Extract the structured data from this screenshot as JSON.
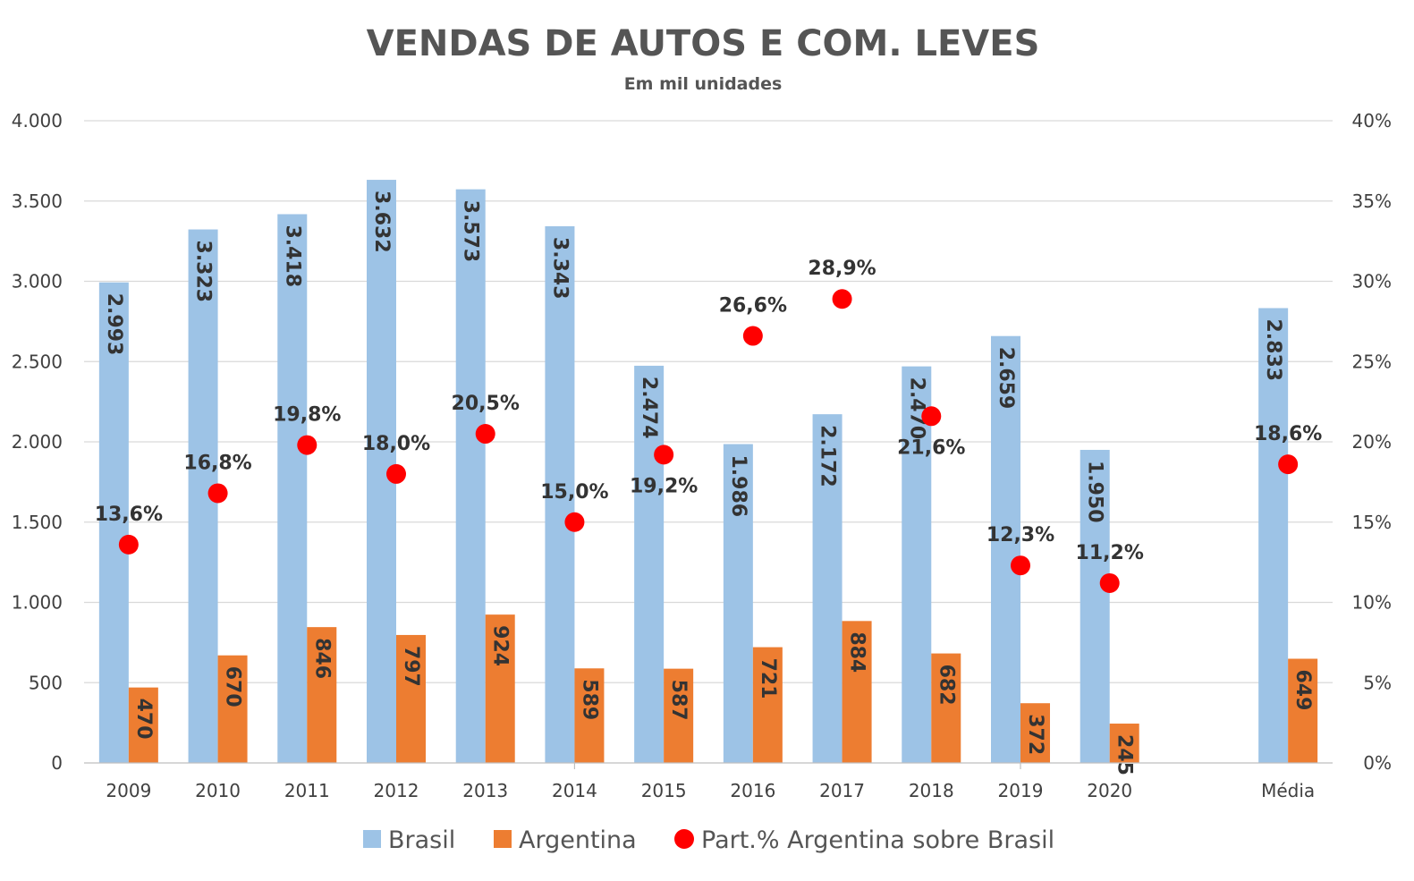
{
  "chart_data": {
    "type": "bar",
    "title": "VENDAS DE AUTOS E COM. LEVES",
    "subtitle": "Em mil unidades",
    "categories": [
      "2009",
      "2010",
      "2011",
      "2012",
      "2013",
      "2014",
      "2015",
      "2016",
      "2017",
      "2018",
      "2019",
      "2020",
      "Média"
    ],
    "series": [
      {
        "name": "Brasil",
        "type": "bar",
        "axis": "left",
        "color": "#9dc3e6",
        "values": [
          2993,
          3323,
          3418,
          3632,
          3573,
          3343,
          2474,
          1986,
          2172,
          2470,
          2659,
          1950,
          2833
        ],
        "labels": [
          "2.993",
          "3.323",
          "3.418",
          "3.632",
          "3.573",
          "3.343",
          "2.474",
          "1.986",
          "2.172",
          "2.470",
          "2.659",
          "1.950",
          "2.833"
        ]
      },
      {
        "name": "Argentina",
        "type": "bar",
        "axis": "left",
        "color": "#ed7d31",
        "values": [
          470,
          670,
          846,
          797,
          924,
          589,
          587,
          721,
          884,
          682,
          372,
          245,
          649
        ],
        "labels": [
          "470",
          "670",
          "846",
          "797",
          "924",
          "589",
          "587",
          "721",
          "884",
          "682",
          "372",
          "245",
          "649"
        ]
      },
      {
        "name": "Part.% Argentina sobre Brasil",
        "type": "scatter",
        "axis": "right",
        "color": "#ff0000",
        "values": [
          13.6,
          16.8,
          19.8,
          18.0,
          20.5,
          15.0,
          19.2,
          26.6,
          28.9,
          21.6,
          12.3,
          11.2,
          18.6
        ],
        "labels": [
          "13,6%",
          "16,8%",
          "19,8%",
          "18,0%",
          "20,5%",
          "15,0%",
          "19,2%",
          "26,6%",
          "28,9%",
          "21,6%",
          "12,3%",
          "11,2%",
          "18,6%"
        ],
        "label_position": [
          "above",
          "above",
          "above",
          "above",
          "above",
          "above",
          "below",
          "above",
          "above",
          "below",
          "above",
          "above",
          "above"
        ]
      }
    ],
    "y_left": {
      "ylim": [
        0,
        4000
      ],
      "ticks": [
        0,
        500,
        1000,
        1500,
        2000,
        2500,
        3000,
        3500,
        4000
      ],
      "tick_labels": [
        "0",
        "500",
        "1.000",
        "1.500",
        "2.000",
        "2.500",
        "3.000",
        "3.500",
        "4.000"
      ]
    },
    "y_right": {
      "ylim": [
        0,
        40
      ],
      "ticks": [
        0,
        5,
        10,
        15,
        20,
        25,
        30,
        35,
        40
      ],
      "tick_labels": [
        "0%",
        "5%",
        "10%",
        "15%",
        "20%",
        "25%",
        "30%",
        "35%",
        "40%"
      ]
    },
    "grid": true,
    "legend": "bottom"
  }
}
